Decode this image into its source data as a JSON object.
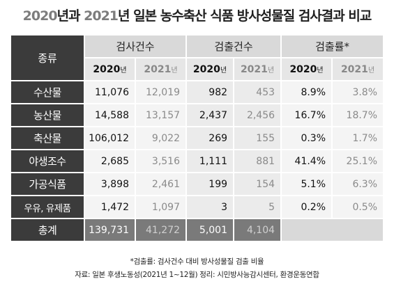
{
  "title": {
    "year1": "2020",
    "text1": "년과 ",
    "year2": "2021",
    "text2": "년 일본 농수축산 식품 방사성물질 검사결과 비교"
  },
  "table": {
    "header": {
      "category": "종류",
      "groups": [
        "검사건수",
        "검출건수",
        "검출률*"
      ],
      "years": [
        {
          "year": "2020",
          "unit": "년"
        },
        {
          "year": "2021",
          "unit": "년"
        },
        {
          "year": "2020",
          "unit": "년"
        },
        {
          "year": "2021",
          "unit": "년"
        },
        {
          "year": "2020",
          "unit": "년"
        },
        {
          "year": "2021",
          "unit": "년"
        }
      ]
    },
    "rows": [
      {
        "label": "수산물",
        "values": [
          "11,076",
          "12,019",
          "982",
          "453",
          "8.9%",
          "3.8%"
        ]
      },
      {
        "label": "농산물",
        "values": [
          "14,588",
          "13,157",
          "2,437",
          "2,456",
          "16.7%",
          "18.7%"
        ]
      },
      {
        "label": "축산물",
        "values": [
          "106,012",
          "9,022",
          "269",
          "155",
          "0.3%",
          "1.7%"
        ]
      },
      {
        "label": "야생조수",
        "values": [
          "2,685",
          "3,516",
          "1,111",
          "881",
          "41.4%",
          "25.1%"
        ]
      },
      {
        "label": "가공식품",
        "values": [
          "3,898",
          "2,461",
          "199",
          "154",
          "5.1%",
          "6.3%"
        ]
      },
      {
        "label": "우유, 유제품",
        "values": [
          "1,472",
          "1,097",
          "3",
          "5",
          "0.2%",
          "0.5%"
        ]
      }
    ],
    "total": {
      "label": "총계",
      "values": [
        "139,731",
        "41,272",
        "5,001",
        "4,104"
      ]
    }
  },
  "notes": {
    "definition": "*검출률: 검사건수 대비 방사성물질 검출 비율",
    "source": "자료: 일본 후생노동성(2021년 1~12월) 정리: 시민방사능감시센터, 환경운동연합"
  }
}
